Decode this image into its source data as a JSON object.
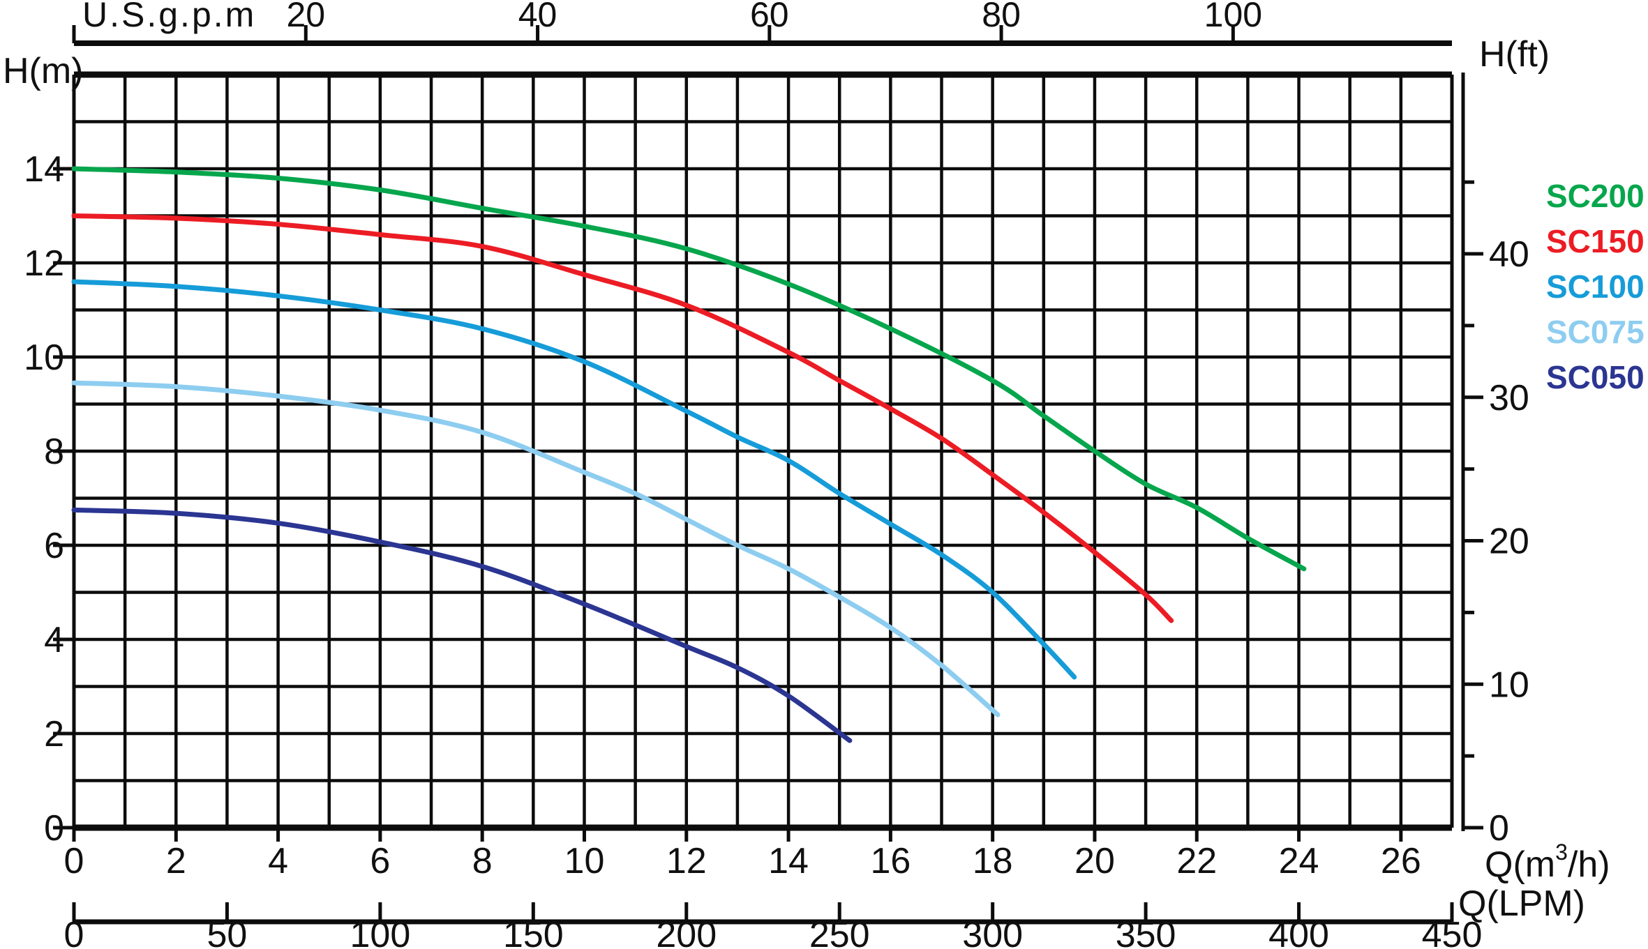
{
  "chart_data": {
    "type": "line",
    "description": "Pump head vs flow performance curves for five pump models",
    "axes": {
      "bottom_m3h": {
        "label_full": "Q(m³/h)",
        "label_prefix": "Q(m",
        "label_sup": "3",
        "label_suffix": "/h)",
        "ticks": [
          0,
          2,
          4,
          6,
          8,
          10,
          12,
          14,
          16,
          18,
          20,
          22,
          24,
          26
        ],
        "max": 27,
        "grid_step": 1
      },
      "bottom_lpm": {
        "label": "Q(LPM)",
        "ticks": [
          0,
          50,
          100,
          150,
          200,
          250,
          300,
          350,
          400,
          450
        ],
        "max": 450
      },
      "top_gpm": {
        "label": "U.S.g.p.m",
        "ticks": [
          20,
          40,
          60,
          80,
          100
        ],
        "gpm_per_m3h": 4.4029
      },
      "left_m": {
        "label": "H(m)",
        "ticks": [
          0,
          2,
          4,
          6,
          8,
          10,
          12,
          14
        ],
        "max": 16,
        "grid_step": 1
      },
      "right_ft": {
        "label": "H(ft)",
        "labeled_ticks": [
          0,
          10,
          20,
          30,
          40
        ],
        "minor_step": 5,
        "max_tick": 45,
        "ft_per_m": 3.2808
      }
    },
    "grid": true,
    "legend_position": "right",
    "series": [
      {
        "name": "SC200",
        "color": "#07a64d",
        "points": [
          [
            0,
            14
          ],
          [
            2,
            13.93
          ],
          [
            4,
            13.8
          ],
          [
            6,
            13.55
          ],
          [
            8,
            13.16
          ],
          [
            10,
            12.78
          ],
          [
            12,
            12.3
          ],
          [
            14,
            11.55
          ],
          [
            16,
            10.6
          ],
          [
            18,
            9.5
          ],
          [
            19,
            8.75
          ],
          [
            20,
            8.0
          ],
          [
            21,
            7.3
          ],
          [
            22,
            6.8
          ],
          [
            23,
            6.15
          ],
          [
            24.1,
            5.5
          ]
        ]
      },
      {
        "name": "SC150",
        "color": "#ec1c24",
        "points": [
          [
            0,
            13
          ],
          [
            2,
            12.95
          ],
          [
            4,
            12.82
          ],
          [
            6,
            12.6
          ],
          [
            8,
            12.35
          ],
          [
            10,
            11.75
          ],
          [
            12,
            11.1
          ],
          [
            14,
            10.1
          ],
          [
            15,
            9.5
          ],
          [
            16,
            8.9
          ],
          [
            17,
            8.27
          ],
          [
            18,
            7.5
          ],
          [
            19,
            6.7
          ],
          [
            20,
            5.85
          ],
          [
            21,
            4.95
          ],
          [
            21.5,
            4.4
          ]
        ]
      },
      {
        "name": "SC100",
        "color": "#169cd8",
        "points": [
          [
            0,
            11.6
          ],
          [
            2,
            11.5
          ],
          [
            4,
            11.3
          ],
          [
            6,
            11.0
          ],
          [
            8,
            10.6
          ],
          [
            10,
            9.9
          ],
          [
            12,
            8.85
          ],
          [
            13,
            8.3
          ],
          [
            14,
            7.8
          ],
          [
            15,
            7.1
          ],
          [
            16,
            6.45
          ],
          [
            17,
            5.8
          ],
          [
            18,
            5.0
          ],
          [
            19,
            3.9
          ],
          [
            19.6,
            3.2
          ]
        ]
      },
      {
        "name": "SC075",
        "color": "#8dcdf0",
        "points": [
          [
            0,
            9.45
          ],
          [
            2,
            9.37
          ],
          [
            4,
            9.17
          ],
          [
            6,
            8.87
          ],
          [
            8,
            8.4
          ],
          [
            10,
            7.55
          ],
          [
            11,
            7.1
          ],
          [
            12,
            6.55
          ],
          [
            13,
            6.0
          ],
          [
            14,
            5.5
          ],
          [
            15,
            4.9
          ],
          [
            16,
            4.25
          ],
          [
            17,
            3.45
          ],
          [
            18.1,
            2.4
          ]
        ]
      },
      {
        "name": "SC050",
        "color": "#2b3592",
        "points": [
          [
            0,
            6.75
          ],
          [
            2,
            6.68
          ],
          [
            4,
            6.47
          ],
          [
            6,
            6.07
          ],
          [
            8,
            5.55
          ],
          [
            10,
            4.75
          ],
          [
            12,
            3.85
          ],
          [
            13,
            3.4
          ],
          [
            14,
            2.8
          ],
          [
            15.2,
            1.85
          ]
        ]
      }
    ]
  },
  "layout_colors": {
    "grid": "#0c0c0c",
    "text": "#101010",
    "background": "#ffffff"
  }
}
